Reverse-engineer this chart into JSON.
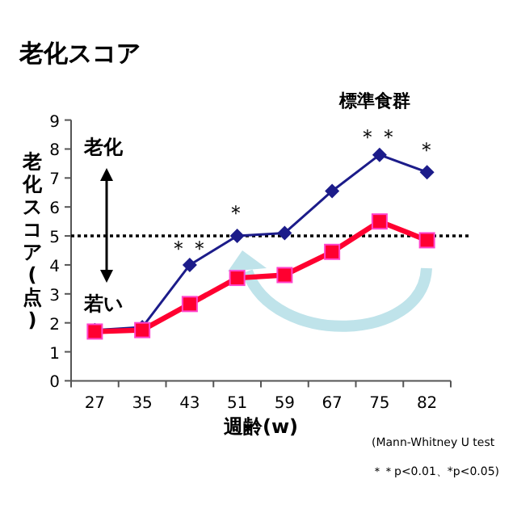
{
  "chart_data": {
    "type": "line",
    "title": "老化スコア",
    "xlabel": "週齢(w)",
    "ylabel": "老化スコア(点)",
    "categories": [
      "27",
      "35",
      "43",
      "51",
      "59",
      "67",
      "75",
      "82"
    ],
    "ylim": [
      0,
      9
    ],
    "yticks": [
      0,
      1,
      2,
      3,
      4,
      5,
      6,
      7,
      8,
      9
    ],
    "legend": false,
    "series": [
      {
        "name": "標準食群",
        "color": "#1c1c8a",
        "marker": "diamond",
        "values": [
          1.75,
          1.85,
          4.0,
          5.0,
          5.1,
          6.55,
          7.8,
          7.2
        ]
      },
      {
        "color": "#ff0030",
        "marker": "square",
        "values": [
          1.7,
          1.75,
          2.65,
          3.55,
          3.65,
          4.45,
          5.5,
          4.85
        ]
      }
    ],
    "ref_lines": [
      {
        "axis": "y",
        "value": 5,
        "line_style": "dotted",
        "color": "#000000"
      }
    ],
    "annotations": [
      "老化",
      "若い",
      "＊＊",
      "＊",
      "＊＊",
      "＊",
      "(Mann-Whitney U test",
      "＊＊p<0.01、*p<0.05)"
    ]
  }
}
